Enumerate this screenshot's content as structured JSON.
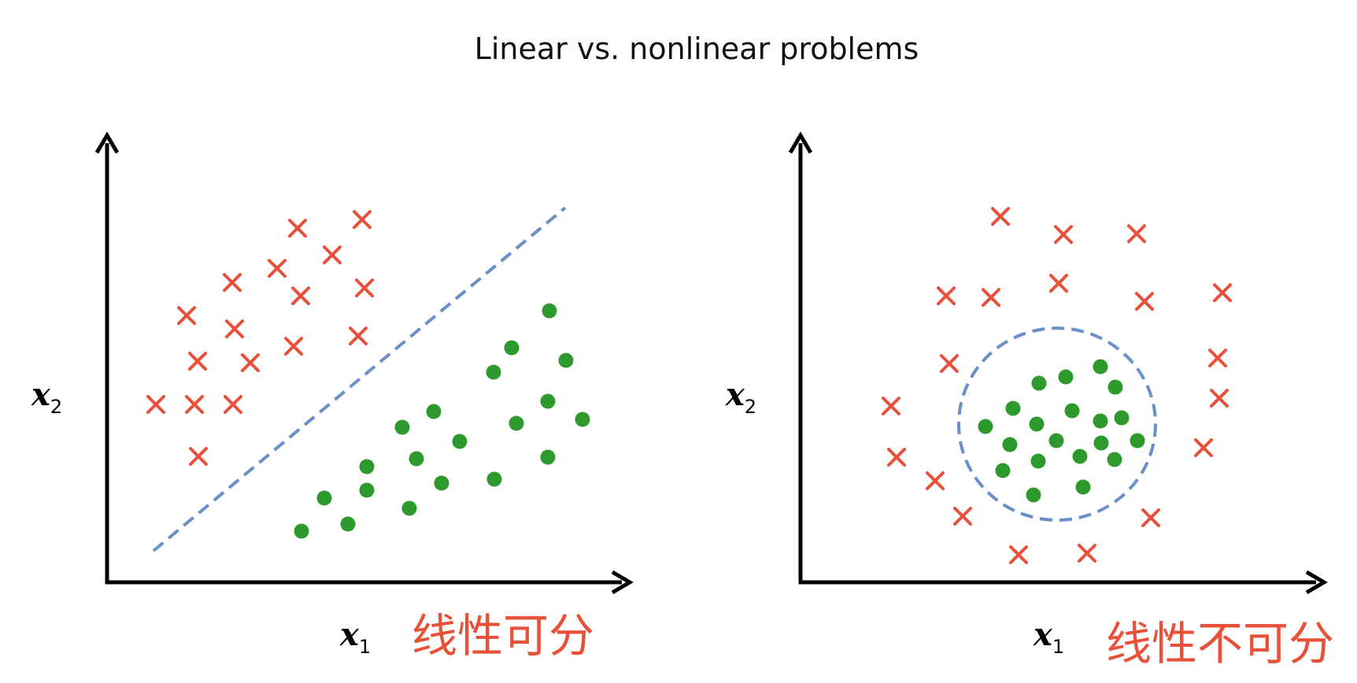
{
  "title": "Linear vs. nonlinear problems",
  "colors": {
    "cross": "#e8503a",
    "dot": "#2e9a2e",
    "boundary": "#6b8fc8",
    "axis": "#000000",
    "label_cn": "#e8503a"
  },
  "markers": {
    "cross_icon": "x-mark-icon",
    "dot_icon": "filled-circle-icon"
  },
  "panels": [
    {
      "id": "linear",
      "x_label": {
        "var": "x",
        "sub": "1"
      },
      "y_label": {
        "var": "x",
        "sub": "2"
      },
      "caption": "线性可分",
      "boundary": "line"
    },
    {
      "id": "nonlinear",
      "x_label": {
        "var": "x",
        "sub": "1"
      },
      "y_label": {
        "var": "x",
        "sub": "2"
      },
      "caption": "线性不可分",
      "boundary": "circle"
    }
  ]
}
